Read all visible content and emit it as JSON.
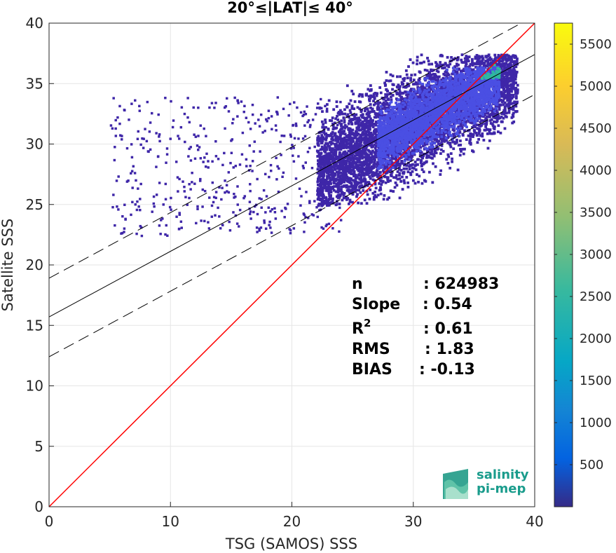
{
  "chart_data": {
    "type": "heatmap",
    "title": "20°≤|LAT|≤ 40°",
    "xlabel": "TSG (SAMOS) SSS",
    "ylabel": "Satellite SSS",
    "xlim": [
      0,
      40
    ],
    "ylim": [
      0,
      40
    ],
    "x_ticks": [
      "0",
      "10",
      "20",
      "30",
      "40"
    ],
    "y_ticks": [
      "0",
      "5",
      "10",
      "15",
      "20",
      "25",
      "30",
      "35",
      "40"
    ],
    "grid": true,
    "colorbar": {
      "range": [
        0,
        5750
      ],
      "ticks": [
        "500",
        "1000",
        "1500",
        "2000",
        "2500",
        "3000",
        "3500",
        "4000",
        "4500",
        "5000",
        "5500"
      ],
      "colormap": "parula"
    },
    "lines": [
      {
        "name": "one-to-one",
        "style": "solid",
        "color": "#ff0000",
        "x": [
          0,
          40
        ],
        "y": [
          0,
          40
        ]
      },
      {
        "name": "fit",
        "style": "solid",
        "color": "#000000",
        "x": [
          0,
          40
        ],
        "y": [
          15.7,
          37.4
        ]
      },
      {
        "name": "fit-upper",
        "style": "dashed",
        "color": "#000000",
        "x": [
          0,
          40
        ],
        "y": [
          18.9,
          40.6
        ]
      },
      {
        "name": "fit-lower",
        "style": "dashed",
        "color": "#000000",
        "x": [
          0,
          40
        ],
        "y": [
          12.4,
          34.1
        ]
      }
    ],
    "density_regions": [
      {
        "x": [
          22,
          38.5
        ],
        "y": [
          25,
          37.5
        ],
        "level": "low"
      },
      {
        "x": [
          27,
          37
        ],
        "y": [
          28,
          36.5
        ],
        "level": "mid"
      },
      {
        "x": [
          35.5,
          37
        ],
        "y": [
          35.5,
          36.8
        ],
        "level": "high"
      }
    ],
    "stats": [
      {
        "label": "n",
        "value": ": 624983"
      },
      {
        "label": "Slope",
        "value": ": 0.54"
      },
      {
        "label": "R",
        "sup": "2",
        "value": ": 0.61"
      },
      {
        "label": "RMS",
        "value": ": 1.83"
      },
      {
        "label": "BIAS",
        "value": ": -0.13"
      }
    ]
  },
  "logo": {
    "line1": "salinity",
    "line2": "pi-mep"
  }
}
